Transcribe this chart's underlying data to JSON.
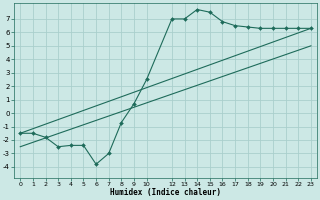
{
  "title": "",
  "xlabel": "Humidex (Indice chaleur)",
  "bg_color": "#cce8e5",
  "grid_color": "#aacfcc",
  "line_color": "#1e6b5a",
  "xlim": [
    -0.5,
    23.5
  ],
  "ylim": [
    -4.8,
    8.2
  ],
  "xticks": [
    0,
    1,
    2,
    3,
    4,
    5,
    6,
    7,
    8,
    9,
    10,
    12,
    13,
    14,
    15,
    16,
    17,
    18,
    19,
    20,
    21,
    22,
    23
  ],
  "yticks": [
    -4,
    -3,
    -2,
    -1,
    0,
    1,
    2,
    3,
    4,
    5,
    6,
    7
  ],
  "zigzag_x": [
    0,
    1,
    2,
    3,
    4,
    5,
    6,
    7,
    8,
    9,
    10,
    12,
    13,
    14,
    15,
    16,
    17,
    18,
    19,
    20,
    21,
    22,
    23
  ],
  "zigzag_y": [
    -1.5,
    -1.5,
    -1.8,
    -2.5,
    -2.4,
    -2.4,
    -3.8,
    -3.0,
    -0.7,
    0.7,
    2.5,
    7.0,
    7.0,
    7.7,
    7.5,
    6.8,
    6.5,
    6.4,
    6.3,
    6.3,
    6.3,
    6.3,
    6.3
  ],
  "line1_x": [
    0,
    23
  ],
  "line1_y": [
    -1.5,
    6.3
  ],
  "line2_x": [
    0,
    23
  ],
  "line2_y": [
    -2.5,
    5.0
  ]
}
